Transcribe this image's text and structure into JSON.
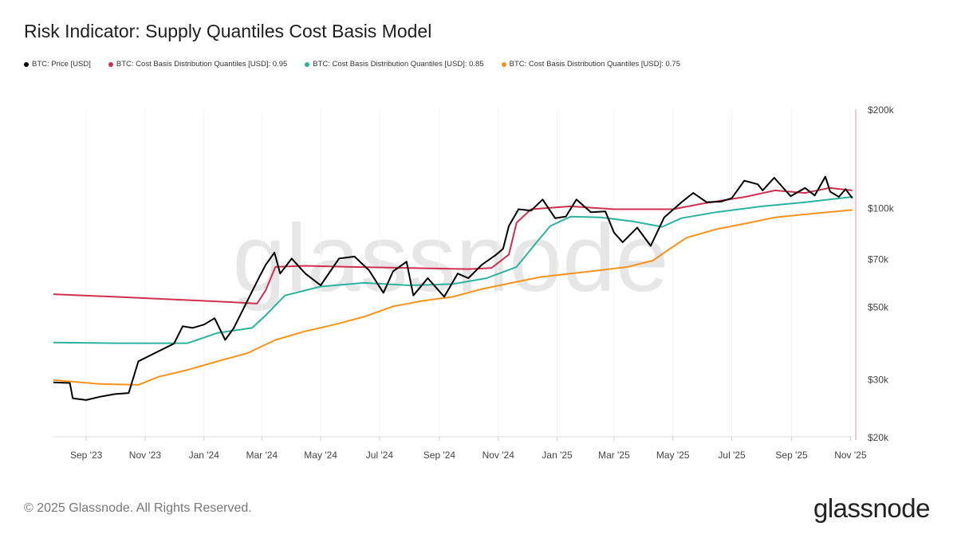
{
  "title": "Risk Indicator: Supply Quantiles Cost Basis Model",
  "footer": "© 2025 Glassnode. All Rights Reserved.",
  "logo": "glassnode",
  "watermark": "glassnode",
  "chart_data": {
    "type": "line",
    "title": "Risk Indicator: Supply Quantiles Cost Basis Model",
    "yscale": "log",
    "ylim": [
      20000,
      200000
    ],
    "xlim": [
      "2023-07-29",
      "2025-11-04"
    ],
    "y_ticks": [
      {
        "v": 200000,
        "label": "$200k"
      },
      {
        "v": 100000,
        "label": "$100k"
      },
      {
        "v": 70000,
        "label": "$70k"
      },
      {
        "v": 50000,
        "label": "$50k"
      },
      {
        "v": 30000,
        "label": "$30k"
      },
      {
        "v": 20000,
        "label": "$20k"
      }
    ],
    "x_ticks": [
      {
        "d": "2023-09-01",
        "label": "Sep '23"
      },
      {
        "d": "2023-11-01",
        "label": "Nov '23"
      },
      {
        "d": "2024-01-01",
        "label": "Jan '24"
      },
      {
        "d": "2024-03-01",
        "label": "Mar '24"
      },
      {
        "d": "2024-05-01",
        "label": "May '24"
      },
      {
        "d": "2024-07-01",
        "label": "Jul '24"
      },
      {
        "d": "2024-09-01",
        "label": "Sep '24"
      },
      {
        "d": "2024-11-01",
        "label": "Nov '24"
      },
      {
        "d": "2025-01-01",
        "label": "Jan '25"
      },
      {
        "d": "2025-03-01",
        "label": "Mar '25"
      },
      {
        "d": "2025-05-01",
        "label": "May '25"
      },
      {
        "d": "2025-07-01",
        "label": "Jul '25"
      },
      {
        "d": "2025-09-01",
        "label": "Sep '25"
      },
      {
        "d": "2025-11-01",
        "label": "Nov '25"
      }
    ],
    "legend_position": "top-left",
    "series": [
      {
        "name": "BTC: Price [USD]",
        "color": "#000000",
        "width": 2,
        "points": [
          [
            "2023-07-29",
            29300
          ],
          [
            "2023-08-15",
            29200
          ],
          [
            "2023-08-18",
            26200
          ],
          [
            "2023-09-01",
            25900
          ],
          [
            "2023-09-15",
            26500
          ],
          [
            "2023-10-01",
            27000
          ],
          [
            "2023-10-15",
            27200
          ],
          [
            "2023-10-25",
            34000
          ],
          [
            "2023-11-01",
            34800
          ],
          [
            "2023-11-15",
            36500
          ],
          [
            "2023-12-01",
            38500
          ],
          [
            "2023-12-10",
            43500
          ],
          [
            "2023-12-20",
            43000
          ],
          [
            "2024-01-01",
            44000
          ],
          [
            "2024-01-12",
            46000
          ],
          [
            "2024-01-23",
            39500
          ],
          [
            "2024-02-01",
            43000
          ],
          [
            "2024-02-15",
            52000
          ],
          [
            "2024-02-28",
            62000
          ],
          [
            "2024-03-05",
            67000
          ],
          [
            "2024-03-14",
            73000
          ],
          [
            "2024-03-20",
            63000
          ],
          [
            "2024-04-01",
            70000
          ],
          [
            "2024-04-15",
            63000
          ],
          [
            "2024-05-01",
            58000
          ],
          [
            "2024-05-20",
            70000
          ],
          [
            "2024-06-05",
            71000
          ],
          [
            "2024-06-20",
            64500
          ],
          [
            "2024-07-05",
            55000
          ],
          [
            "2024-07-15",
            64000
          ],
          [
            "2024-07-29",
            68500
          ],
          [
            "2024-08-05",
            54000
          ],
          [
            "2024-08-20",
            61000
          ],
          [
            "2024-09-06",
            53500
          ],
          [
            "2024-09-20",
            63000
          ],
          [
            "2024-10-01",
            61000
          ],
          [
            "2024-10-15",
            67000
          ],
          [
            "2024-10-30",
            72000
          ],
          [
            "2024-11-06",
            75000
          ],
          [
            "2024-11-12",
            88000
          ],
          [
            "2024-11-22",
            99000
          ],
          [
            "2024-12-05",
            98000
          ],
          [
            "2024-12-17",
            106000
          ],
          [
            "2024-12-30",
            93000
          ],
          [
            "2025-01-10",
            94000
          ],
          [
            "2025-01-21",
            106000
          ],
          [
            "2025-02-05",
            97000
          ],
          [
            "2025-02-20",
            97500
          ],
          [
            "2025-03-01",
            84000
          ],
          [
            "2025-03-10",
            78500
          ],
          [
            "2025-03-25",
            87000
          ],
          [
            "2025-04-08",
            76500
          ],
          [
            "2025-04-22",
            93500
          ],
          [
            "2025-05-10",
            104000
          ],
          [
            "2025-05-22",
            111000
          ],
          [
            "2025-06-05",
            104000
          ],
          [
            "2025-06-20",
            104500
          ],
          [
            "2025-07-01",
            107000
          ],
          [
            "2025-07-14",
            121000
          ],
          [
            "2025-07-28",
            118000
          ],
          [
            "2025-08-02",
            113000
          ],
          [
            "2025-08-14",
            123500
          ],
          [
            "2025-08-31",
            108500
          ],
          [
            "2025-09-15",
            115000
          ],
          [
            "2025-09-25",
            109000
          ],
          [
            "2025-10-06",
            124500
          ],
          [
            "2025-10-11",
            112000
          ],
          [
            "2025-10-20",
            108000
          ],
          [
            "2025-10-27",
            114000
          ],
          [
            "2025-11-03",
            107000
          ]
        ]
      },
      {
        "name": "BTC: Cost Basis Distribution Quantiles [USD]: 0.95",
        "color": "#d0304f",
        "width": 2,
        "points": [
          [
            "2023-07-29",
            54500
          ],
          [
            "2023-10-01",
            53500
          ],
          [
            "2023-12-01",
            52500
          ],
          [
            "2024-02-01",
            51500
          ],
          [
            "2024-02-25",
            51000
          ],
          [
            "2024-03-05",
            56000
          ],
          [
            "2024-03-15",
            66000
          ],
          [
            "2024-04-15",
            66500
          ],
          [
            "2024-06-01",
            66000
          ],
          [
            "2024-08-01",
            65500
          ],
          [
            "2024-10-01",
            65000
          ],
          [
            "2024-10-25",
            65500
          ],
          [
            "2024-11-12",
            72000
          ],
          [
            "2024-11-20",
            90000
          ],
          [
            "2024-12-05",
            99000
          ],
          [
            "2025-01-15",
            101000
          ],
          [
            "2025-03-01",
            99000
          ],
          [
            "2025-05-01",
            99000
          ],
          [
            "2025-06-01",
            103000
          ],
          [
            "2025-07-15",
            108000
          ],
          [
            "2025-08-15",
            113000
          ],
          [
            "2025-09-15",
            111000
          ],
          [
            "2025-10-10",
            115000
          ],
          [
            "2025-11-03",
            113000
          ]
        ]
      },
      {
        "name": "BTC: Cost Basis Distribution Quantiles [USD]: 0.85",
        "color": "#2bb3a0",
        "width": 2,
        "points": [
          [
            "2023-07-29",
            38800
          ],
          [
            "2023-10-01",
            38600
          ],
          [
            "2023-12-15",
            38600
          ],
          [
            "2024-01-15",
            41500
          ],
          [
            "2024-02-20",
            43000
          ],
          [
            "2024-03-05",
            47000
          ],
          [
            "2024-03-25",
            54000
          ],
          [
            "2024-05-01",
            57500
          ],
          [
            "2024-06-15",
            59000
          ],
          [
            "2024-08-01",
            58000
          ],
          [
            "2024-09-15",
            58500
          ],
          [
            "2024-10-20",
            61000
          ],
          [
            "2024-11-20",
            66000
          ],
          [
            "2024-12-10",
            78000
          ],
          [
            "2024-12-25",
            88000
          ],
          [
            "2025-01-15",
            94000
          ],
          [
            "2025-02-15",
            93500
          ],
          [
            "2025-03-20",
            91000
          ],
          [
            "2025-04-20",
            87500
          ],
          [
            "2025-05-10",
            93000
          ],
          [
            "2025-06-15",
            97000
          ],
          [
            "2025-08-01",
            101000
          ],
          [
            "2025-09-15",
            104000
          ],
          [
            "2025-11-03",
            108000
          ]
        ]
      },
      {
        "name": "BTC: Cost Basis Distribution Quantiles [USD]: 0.75",
        "color": "#f7931a",
        "width": 2,
        "points": [
          [
            "2023-07-29",
            29800
          ],
          [
            "2023-09-15",
            29000
          ],
          [
            "2023-10-25",
            28800
          ],
          [
            "2023-11-15",
            30500
          ],
          [
            "2023-12-15",
            32000
          ],
          [
            "2024-01-15",
            34000
          ],
          [
            "2024-02-15",
            36000
          ],
          [
            "2024-03-15",
            39500
          ],
          [
            "2024-04-15",
            42000
          ],
          [
            "2024-05-15",
            44000
          ],
          [
            "2024-06-15",
            46500
          ],
          [
            "2024-07-15",
            50000
          ],
          [
            "2024-08-15",
            52000
          ],
          [
            "2024-09-15",
            53500
          ],
          [
            "2024-10-15",
            56500
          ],
          [
            "2024-11-15",
            59000
          ],
          [
            "2024-12-15",
            61500
          ],
          [
            "2025-01-15",
            63000
          ],
          [
            "2025-02-15",
            64500
          ],
          [
            "2025-03-15",
            66000
          ],
          [
            "2025-04-10",
            69000
          ],
          [
            "2025-04-25",
            74000
          ],
          [
            "2025-05-15",
            81000
          ],
          [
            "2025-06-15",
            86000
          ],
          [
            "2025-07-15",
            89500
          ],
          [
            "2025-08-15",
            93500
          ],
          [
            "2025-09-15",
            95500
          ],
          [
            "2025-11-03",
            98500
          ]
        ]
      }
    ]
  }
}
